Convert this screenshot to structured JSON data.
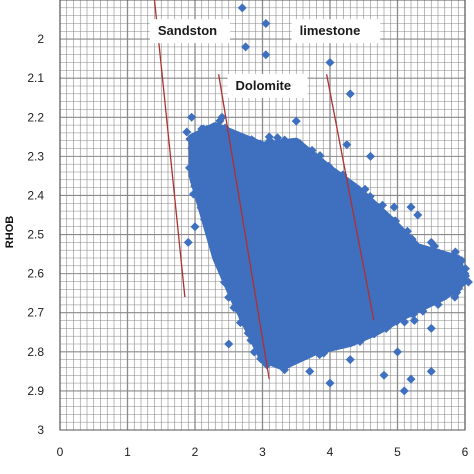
{
  "chart_data": {
    "type": "scatter",
    "ylabel": "RHOB",
    "xlabel": "",
    "xlim": [
      0,
      6
    ],
    "ylim": [
      1.9,
      3.0
    ],
    "y_inverted": true,
    "grid": true,
    "legend": "none",
    "colors": {
      "points": "#3F6FBF",
      "lines": "#B03030",
      "grid": "#8a8a8a"
    },
    "x_ticks": [
      "0",
      "1",
      "2",
      "3",
      "4",
      "5",
      "6"
    ],
    "y_ticks": [
      "2",
      "2.1",
      "2.2",
      "2.3",
      "2.4",
      "2.5",
      "2.6",
      "2.7",
      "2.8",
      "2.9",
      "3"
    ],
    "y_tick_values": [
      2.0,
      2.1,
      2.2,
      2.3,
      2.4,
      2.5,
      2.6,
      2.7,
      2.8,
      2.9,
      3.0
    ],
    "annotations": [
      {
        "label": "Sandston",
        "x": 1.45,
        "y": 1.99
      },
      {
        "label": "Dolomite",
        "x": 2.6,
        "y": 2.13
      },
      {
        "label": "limestone",
        "x": 3.55,
        "y": 1.99
      }
    ],
    "lithology_lines": [
      {
        "name": "Sandston",
        "x": [
          1.4,
          1.85
        ],
        "y": [
          1.9,
          2.66
        ]
      },
      {
        "name": "Dolomite",
        "x": [
          2.35,
          3.1
        ],
        "y": [
          2.09,
          2.87
        ]
      },
      {
        "name": "limestone",
        "x": [
          3.95,
          4.65
        ],
        "y": [
          2.09,
          2.72
        ]
      }
    ],
    "series": [
      {
        "points": [
          [
            2.7,
            1.92
          ],
          [
            3.05,
            1.96
          ],
          [
            2.75,
            2.02
          ],
          [
            3.05,
            2.04
          ],
          [
            4.0,
            2.06
          ],
          [
            4.3,
            2.14
          ],
          [
            1.95,
            2.2
          ],
          [
            2.1,
            2.23
          ],
          [
            2.4,
            2.2
          ],
          [
            3.1,
            2.25
          ],
          [
            3.5,
            2.21
          ],
          [
            4.25,
            2.27
          ],
          [
            4.6,
            2.3
          ],
          [
            5.2,
            2.43
          ],
          [
            5.5,
            2.52
          ],
          [
            5.7,
            2.58
          ],
          [
            6.0,
            2.6
          ],
          [
            5.85,
            2.66
          ],
          [
            5.5,
            2.74
          ],
          [
            5.0,
            2.8
          ],
          [
            5.2,
            2.87
          ],
          [
            5.5,
            2.85
          ],
          [
            4.3,
            2.82
          ],
          [
            4.8,
            2.86
          ],
          [
            5.1,
            2.9
          ],
          [
            4.0,
            2.88
          ],
          [
            3.7,
            2.85
          ],
          [
            3.3,
            2.76
          ],
          [
            5.3,
            2.45
          ],
          [
            4.95,
            2.43
          ],
          [
            2.0,
            2.48
          ],
          [
            1.9,
            2.52
          ],
          [
            2.5,
            2.78
          ],
          [
            3.6,
            2.4
          ],
          [
            5.25,
            2.72
          ]
        ],
        "core_polygon": [
          [
            1.95,
            2.25
          ],
          [
            2.3,
            2.22
          ],
          [
            3.0,
            2.27
          ],
          [
            3.5,
            2.26
          ],
          [
            4.0,
            2.33
          ],
          [
            4.4,
            2.38
          ],
          [
            4.9,
            2.46
          ],
          [
            5.3,
            2.53
          ],
          [
            5.9,
            2.56
          ],
          [
            6.0,
            2.62
          ],
          [
            5.7,
            2.66
          ],
          [
            5.1,
            2.71
          ],
          [
            4.7,
            2.75
          ],
          [
            4.3,
            2.78
          ],
          [
            3.8,
            2.8
          ],
          [
            3.3,
            2.84
          ],
          [
            3.0,
            2.82
          ],
          [
            2.8,
            2.75
          ],
          [
            2.55,
            2.66
          ],
          [
            2.3,
            2.56
          ],
          [
            2.1,
            2.44
          ],
          [
            1.95,
            2.35
          ]
        ]
      }
    ]
  }
}
